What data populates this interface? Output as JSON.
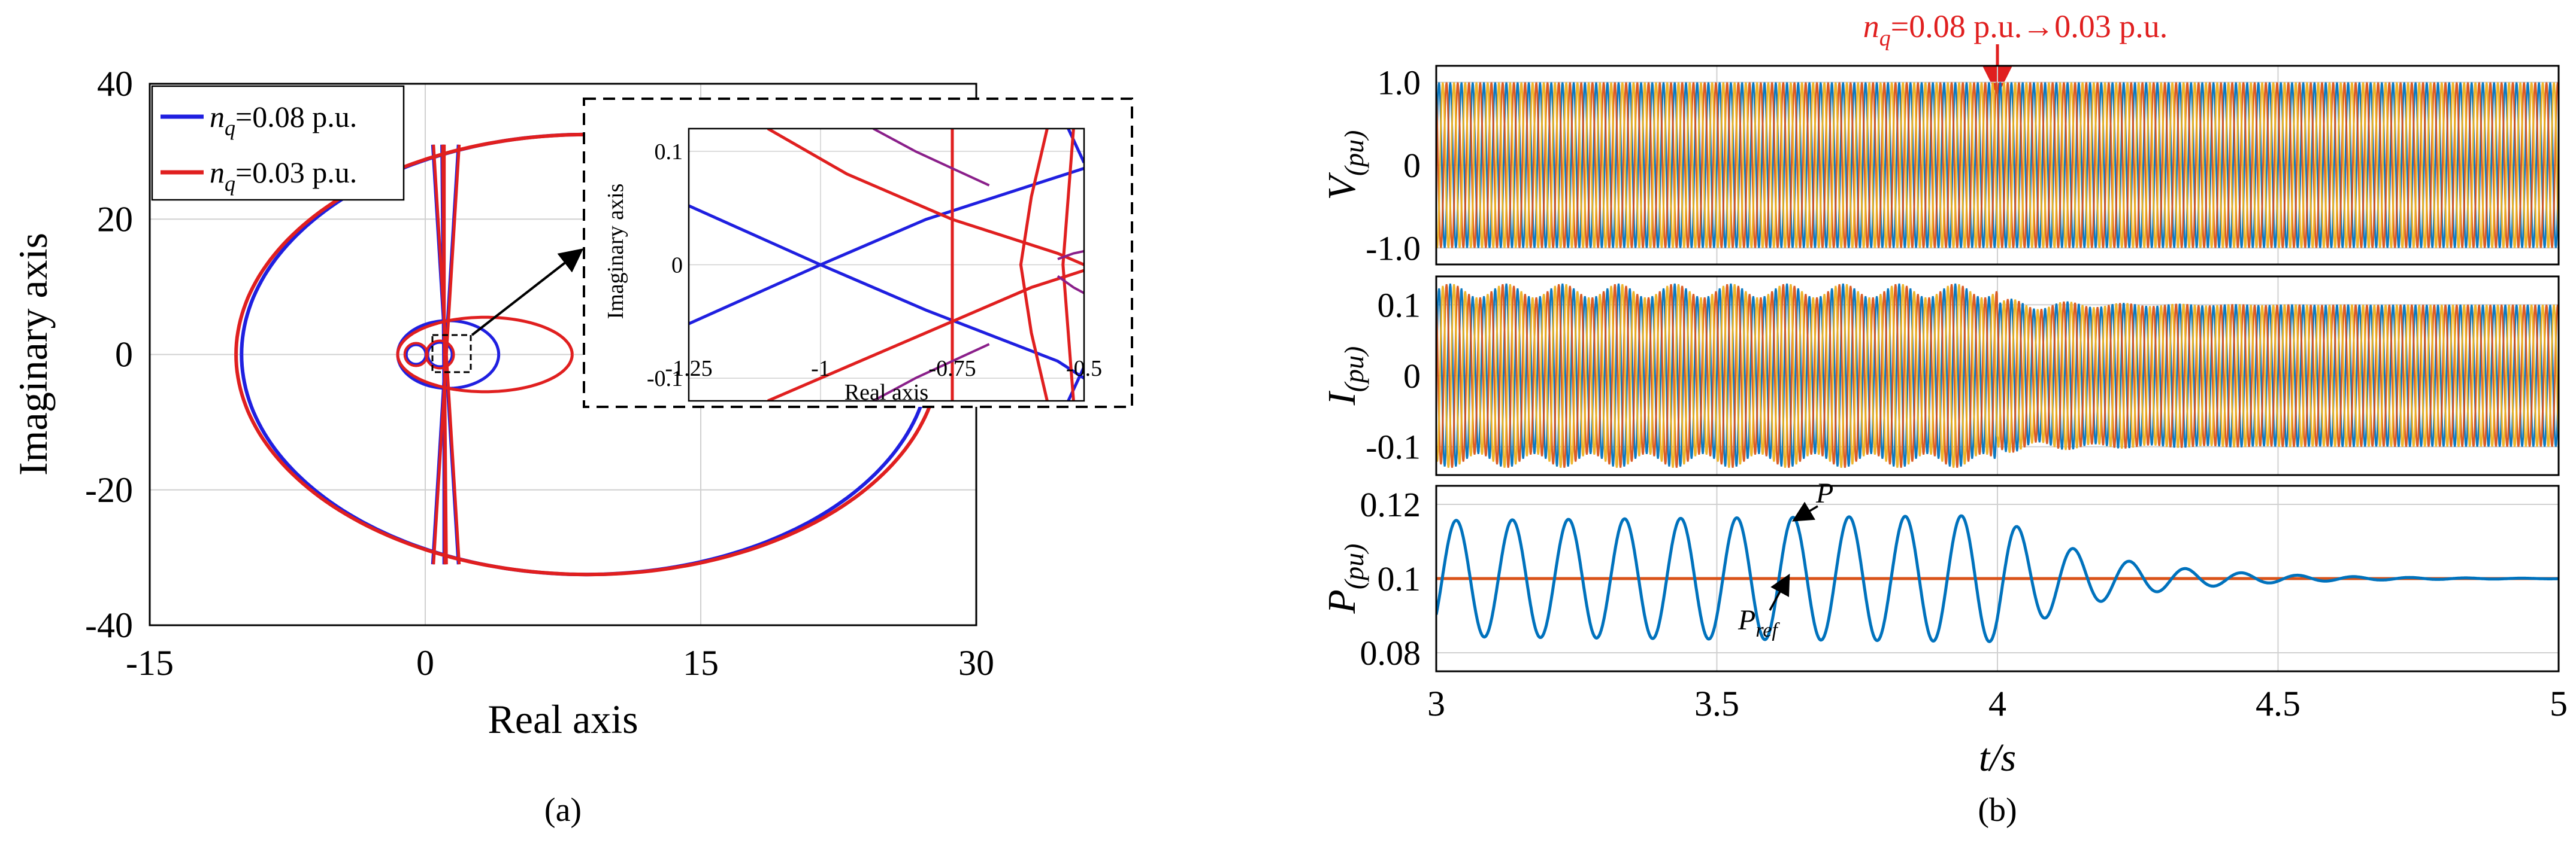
{
  "panel_a": {
    "panel_label": "(a)",
    "chart_data": {
      "type": "line",
      "xlabel": "Real axis",
      "ylabel": "Imaginary axis",
      "xlim": [
        -15,
        30
      ],
      "ylim": [
        -40,
        40
      ],
      "xticks": [
        "-15",
        "0",
        "15",
        "30"
      ],
      "yticks": [
        "40",
        "20",
        "0",
        "-20",
        "-40"
      ],
      "grid": true,
      "legend_position": "top-left",
      "legend": [
        {
          "prefix": "n",
          "subscript": "q",
          "suffix": "=0.08 p.u.",
          "color": "#1f1fe0"
        },
        {
          "prefix": "n",
          "subscript": "q",
          "suffix": "=0.03 p.u.",
          "color": "#e01f1f"
        }
      ],
      "series": [
        {
          "name": "nq=0.08 p.u.",
          "color": "#1f1fe0",
          "note_lobes": "upper and lower large lobes",
          "outer_left_x": -10,
          "outer_right_x": 27.5,
          "peak_imag": 32.5,
          "inner_lobe_right_x": 4,
          "inner_lobe_imag": 5
        },
        {
          "name": "nq=0.03 p.u.",
          "color": "#e01f1f",
          "outer_left_x": -10.3,
          "outer_right_x": 28,
          "peak_imag": 32.5,
          "inner_lobe_right_x": 8,
          "inner_lobe_imag": 5.5
        }
      ],
      "inset": {
        "xlabel": "Real axis",
        "ylabel": "Imaginary axis",
        "xlim": [
          -1.25,
          -0.5
        ],
        "ylim": [
          -0.12,
          0.12
        ],
        "xticks": [
          "-1.25",
          "-1",
          "-0.75",
          "-0.5"
        ],
        "yticks": [
          "0.1",
          "0",
          "-0.1"
        ]
      }
    }
  },
  "panel_b": {
    "panel_label": "(b)",
    "annotation": {
      "prefix": "n",
      "subscript": "q",
      "text": "=0.08 p.u.→0.03 p.u.",
      "t": 4,
      "color": "#e01f1f"
    },
    "xlabel": "t/s",
    "xlim": [
      3,
      5
    ],
    "xticks": [
      "3",
      "3.5",
      "4",
      "4.5",
      "5"
    ],
    "chart_data": [
      {
        "type": "line",
        "ylabel_main": "V",
        "ylabel_sub": "(pu)",
        "ylim": [
          -1.2,
          1.2
        ],
        "yticks": [
          "1.0",
          "0",
          "-1.0"
        ],
        "amplitude": 1.0,
        "colors": [
          "#0072bd",
          "#d95319",
          "#edb120"
        ]
      },
      {
        "type": "line",
        "ylabel_main": "I",
        "ylabel_sub": "(pu)",
        "ylim": [
          -0.14,
          0.14
        ],
        "yticks": [
          "0.1",
          "0",
          "-0.1"
        ],
        "amplitude_before": 0.12,
        "amplitude_after": 0.1,
        "colors": [
          "#0072bd",
          "#d95319",
          "#edb120"
        ]
      },
      {
        "type": "line",
        "ylabel_main": "P",
        "ylabel_sub": "(pu)",
        "ylim": [
          0.075,
          0.125
        ],
        "yticks": [
          "0.12",
          "0.1",
          "0.08"
        ],
        "series": [
          {
            "name": "P",
            "color": "#0072bd",
            "mean": 0.1,
            "oscillation_amplitude": 0.017,
            "frequency_hz": 10,
            "damping_after_t": 4
          },
          {
            "name": "Pref",
            "color": "#d95319",
            "value": 0.1
          }
        ],
        "labels": [
          {
            "main": "P",
            "sub": ""
          },
          {
            "main": "P",
            "sub": "ref"
          }
        ]
      }
    ]
  }
}
